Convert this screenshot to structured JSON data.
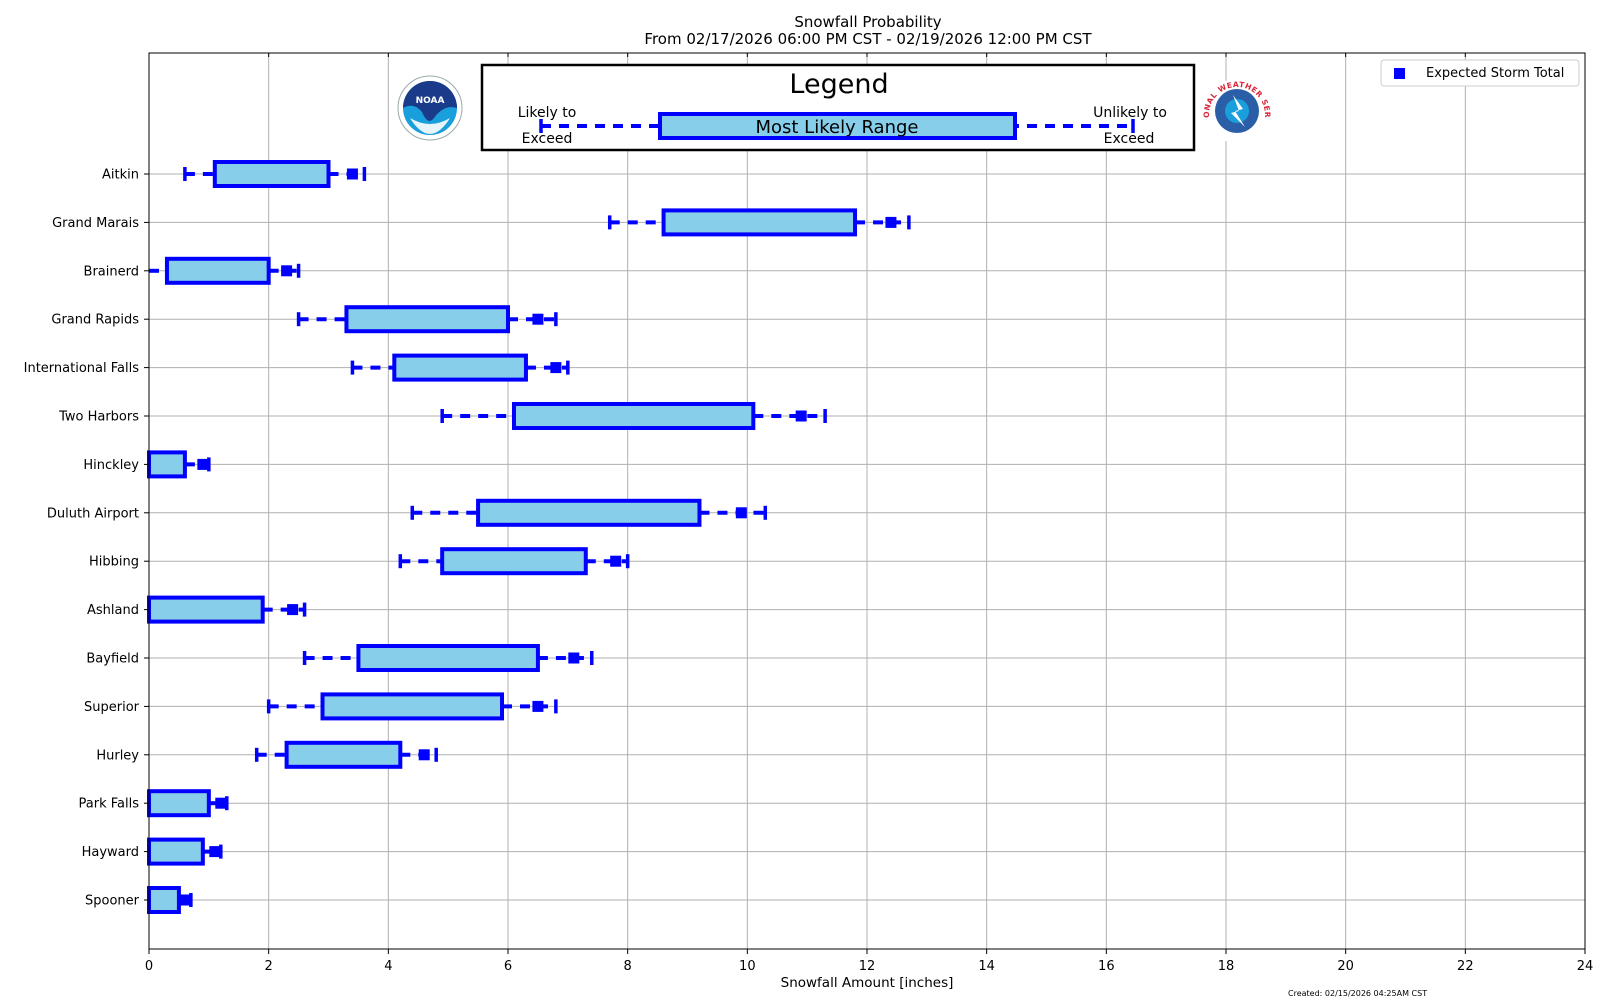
{
  "colors": {
    "box_fill": "#87ceeb",
    "box_stroke": "#0000ff",
    "marker": "#0000ff",
    "grid": "#b0b0b0",
    "noaa_dark": "#1a3a8a",
    "noaa_light": "#1a9fdd",
    "nws_red": "#d9253a",
    "nws_blue": "#2a5fa8"
  },
  "chart_data": {
    "type": "box",
    "title": "Snowfall Probability",
    "subtitle": "From 02/17/2026 06:00 PM CST - 02/19/2026 12:00 PM CST",
    "xlabel": "Snowfall Amount [inches]",
    "ylabel": "",
    "xlim": [
      0,
      24
    ],
    "xticks": [
      0,
      2,
      4,
      6,
      8,
      10,
      12,
      14,
      16,
      18,
      20,
      22,
      24
    ],
    "grid": true,
    "legend": {
      "title": "Legend",
      "left_label_line1": "Likely to",
      "left_label_line2": "Exceed",
      "center_label": "Most Likely Range",
      "right_label_line1": "Unlikely to",
      "right_label_line2": "Exceed",
      "marker_label": "Expected Storm Total",
      "marker_position": "top-right"
    },
    "locations": [
      {
        "name": "Aitkin",
        "low": 0.6,
        "q1": 1.1,
        "q3": 3.0,
        "high": 3.6,
        "expected": 3.4
      },
      {
        "name": "Grand Marais",
        "low": 7.7,
        "q1": 8.6,
        "q3": 11.8,
        "high": 12.7,
        "expected": 12.4
      },
      {
        "name": "Brainerd",
        "low": 0.0,
        "q1": 0.3,
        "q3": 2.0,
        "high": 2.5,
        "expected": 2.3
      },
      {
        "name": "Grand Rapids",
        "low": 2.5,
        "q1": 3.3,
        "q3": 6.0,
        "high": 6.8,
        "expected": 6.5
      },
      {
        "name": "International Falls",
        "low": 3.4,
        "q1": 4.1,
        "q3": 6.3,
        "high": 7.0,
        "expected": 6.8
      },
      {
        "name": "Two Harbors",
        "low": 4.9,
        "q1": 6.1,
        "q3": 10.1,
        "high": 11.3,
        "expected": 10.9
      },
      {
        "name": "Hinckley",
        "low": 0.0,
        "q1": 0.0,
        "q3": 0.6,
        "high": 1.0,
        "expected": 0.9
      },
      {
        "name": "Duluth Airport",
        "low": 4.4,
        "q1": 5.5,
        "q3": 9.2,
        "high": 10.3,
        "expected": 9.9
      },
      {
        "name": "Hibbing",
        "low": 4.2,
        "q1": 4.9,
        "q3": 7.3,
        "high": 8.0,
        "expected": 7.8
      },
      {
        "name": "Ashland",
        "low": 0.0,
        "q1": 0.0,
        "q3": 1.9,
        "high": 2.6,
        "expected": 2.4
      },
      {
        "name": "Bayfield",
        "low": 2.6,
        "q1": 3.5,
        "q3": 6.5,
        "high": 7.4,
        "expected": 7.1
      },
      {
        "name": "Superior",
        "low": 2.0,
        "q1": 2.9,
        "q3": 5.9,
        "high": 6.8,
        "expected": 6.5
      },
      {
        "name": "Hurley",
        "low": 1.8,
        "q1": 2.3,
        "q3": 4.2,
        "high": 4.8,
        "expected": 4.6
      },
      {
        "name": "Park Falls",
        "low": 0.0,
        "q1": 0.0,
        "q3": 1.0,
        "high": 1.3,
        "expected": 1.2
      },
      {
        "name": "Hayward",
        "low": 0.0,
        "q1": 0.0,
        "q3": 0.9,
        "high": 1.2,
        "expected": 1.1
      },
      {
        "name": "Spooner",
        "low": 0.0,
        "q1": 0.0,
        "q3": 0.5,
        "high": 0.7,
        "expected": 0.6
      }
    ]
  },
  "logos": {
    "noaa_text": "NOAA",
    "nws_ring_text": "NATIONAL WEATHER SERVICE"
  },
  "footnote": "Created: 02/15/2026 04:25AM CST"
}
